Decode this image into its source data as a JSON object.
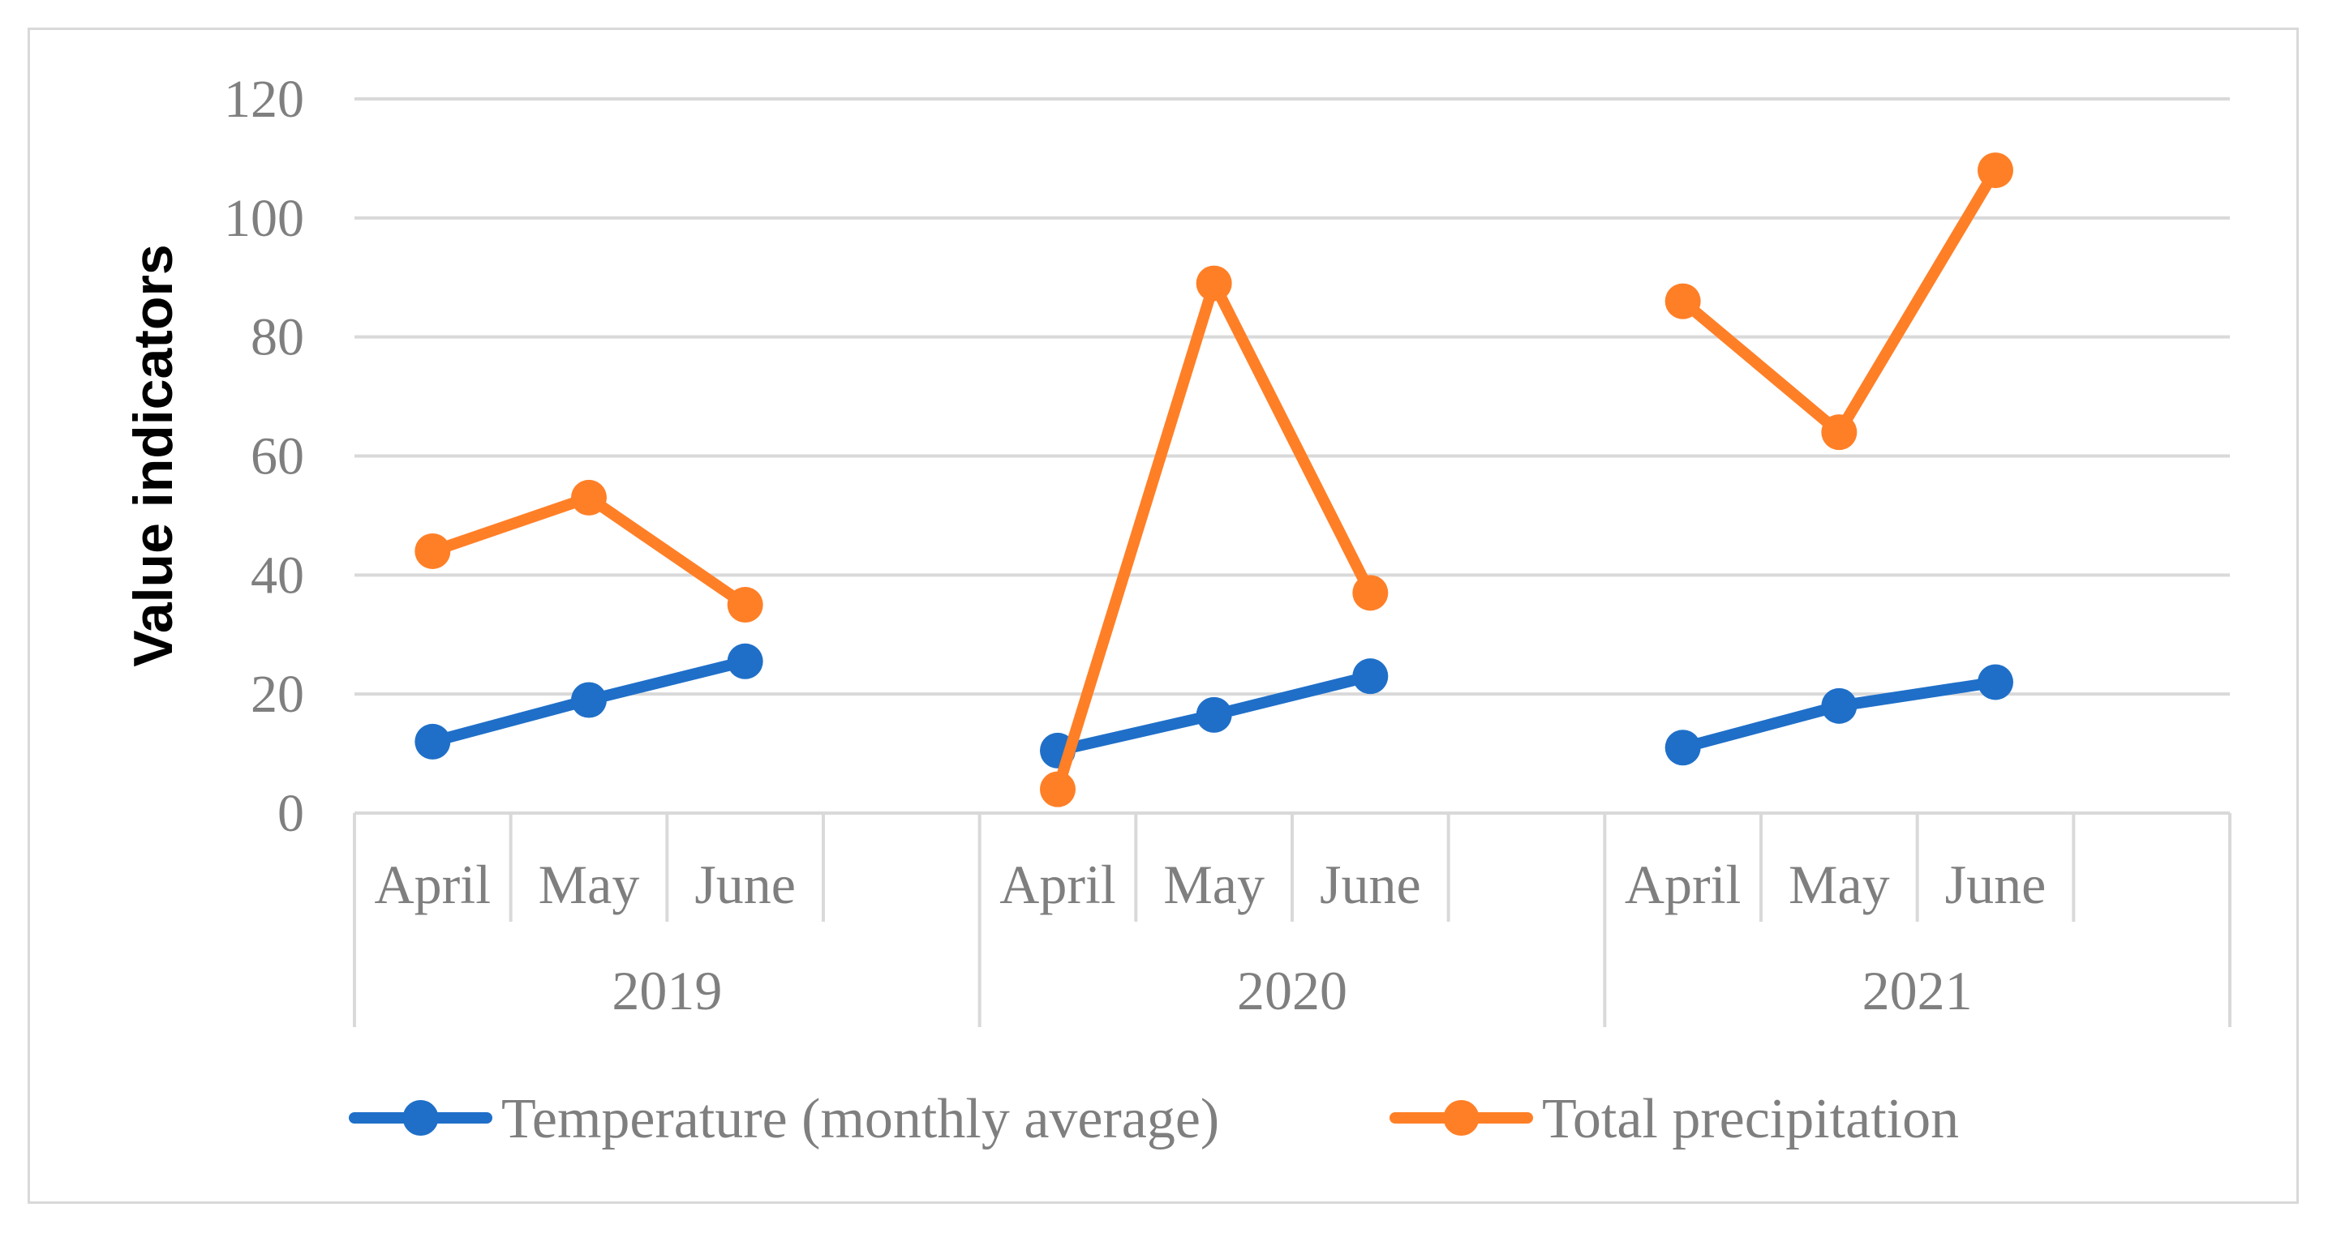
{
  "chart_data": {
    "type": "line",
    "title": "",
    "xlabel": "",
    "ylabel": "Value indicators",
    "ylim": [
      0,
      120
    ],
    "yticks": [
      0,
      20,
      40,
      60,
      80,
      100,
      120
    ],
    "grid": true,
    "legend_position": "bottom",
    "groups": [
      {
        "label": "2019",
        "categories": [
          "April",
          "May",
          "June"
        ]
      },
      {
        "label": "2020",
        "categories": [
          "April",
          "May",
          "June"
        ]
      },
      {
        "label": "2021",
        "categories": [
          "April",
          "May",
          "June"
        ]
      }
    ],
    "series": [
      {
        "name": "Temperature (monthly average)",
        "color": "#1f6fc8",
        "values": [
          [
            12,
            19,
            25.5
          ],
          [
            10.5,
            16.5,
            23
          ],
          [
            11,
            18,
            22
          ]
        ]
      },
      {
        "name": "Total precipitation",
        "color": "#ff7f27",
        "values": [
          [
            44,
            53,
            35
          ],
          [
            4,
            89,
            37
          ],
          [
            86,
            64,
            108
          ]
        ]
      }
    ]
  }
}
